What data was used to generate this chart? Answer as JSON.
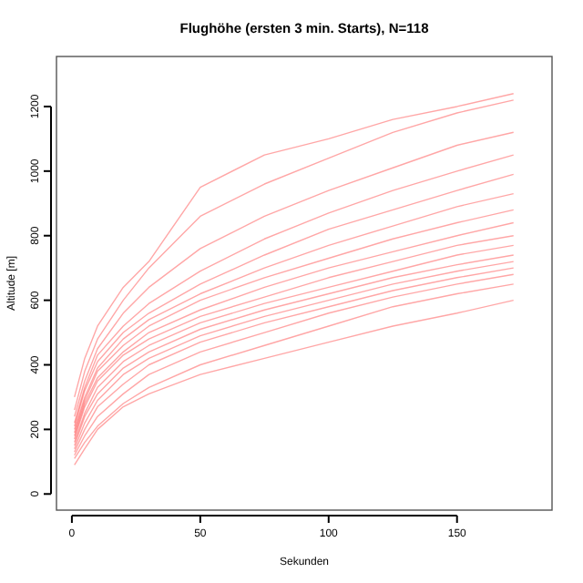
{
  "chart_data": {
    "type": "line",
    "title": "Flughöhe (ersten 3 min. Starts), N=118",
    "xlabel": "Sekunden",
    "ylabel": "Altitude [m]",
    "x": [
      1,
      5,
      10,
      20,
      30,
      50,
      75,
      100,
      125,
      150,
      172
    ],
    "xlim": [
      -6,
      187
    ],
    "ylim": [
      -50,
      1355
    ],
    "xticks": [
      0,
      50,
      100,
      150
    ],
    "yticks": [
      0,
      200,
      400,
      600,
      800,
      1000,
      1200
    ],
    "grid": false,
    "line_style": "solid",
    "marker": "none",
    "series": [
      {
        "color": "#ff0000",
        "values": [
          300,
          420,
          520,
          640,
          720,
          950,
          1050,
          1100,
          1160,
          1200,
          1240
        ]
      },
      {
        "color": "#ff0000",
        "values": [
          260,
          380,
          480,
          600,
          700,
          860,
          960,
          1040,
          1120,
          1180,
          1220
        ]
      },
      {
        "color": "#ff0000",
        "values": [
          240,
          350,
          450,
          560,
          640,
          760,
          860,
          940,
          1010,
          1080,
          1120
        ]
      },
      {
        "color": "#ff0000",
        "values": [
          220,
          330,
          430,
          520,
          590,
          690,
          790,
          870,
          940,
          1000,
          1050
        ]
      },
      {
        "color": "#ff0000",
        "values": [
          210,
          320,
          410,
          500,
          560,
          650,
          740,
          820,
          880,
          940,
          990
        ]
      },
      {
        "color": "#ff0000",
        "values": [
          200,
          300,
          390,
          480,
          540,
          620,
          700,
          770,
          830,
          890,
          930
        ]
      },
      {
        "color": "#ff0000",
        "values": [
          190,
          290,
          380,
          460,
          520,
          600,
          670,
          730,
          790,
          840,
          880
        ]
      },
      {
        "color": "#ff0000",
        "values": [
          180,
          280,
          360,
          440,
          500,
          570,
          640,
          700,
          750,
          800,
          840
        ]
      },
      {
        "color": "#ff0000",
        "values": [
          170,
          270,
          350,
          430,
          480,
          550,
          610,
          670,
          720,
          770,
          800
        ]
      },
      {
        "color": "#ff0000",
        "values": [
          160,
          250,
          330,
          410,
          460,
          530,
          590,
          640,
          690,
          740,
          770
        ]
      },
      {
        "color": "#ff0000",
        "values": [
          150,
          240,
          310,
          390,
          440,
          510,
          570,
          620,
          670,
          710,
          740
        ]
      },
      {
        "color": "#ff0000",
        "values": [
          140,
          220,
          290,
          370,
          420,
          490,
          550,
          600,
          650,
          690,
          720
        ]
      },
      {
        "color": "#ff0000",
        "values": [
          130,
          200,
          270,
          340,
          400,
          470,
          530,
          580,
          630,
          670,
          700
        ]
      },
      {
        "color": "#ff0000",
        "values": [
          120,
          180,
          240,
          310,
          370,
          440,
          500,
          560,
          610,
          650,
          680
        ]
      },
      {
        "color": "#ff0000",
        "values": [
          110,
          160,
          210,
          280,
          330,
          400,
          460,
          520,
          580,
          620,
          650
        ]
      },
      {
        "color": "#ff0000",
        "values": [
          90,
          140,
          200,
          270,
          310,
          370,
          420,
          470,
          520,
          560,
          600
        ]
      }
    ]
  }
}
